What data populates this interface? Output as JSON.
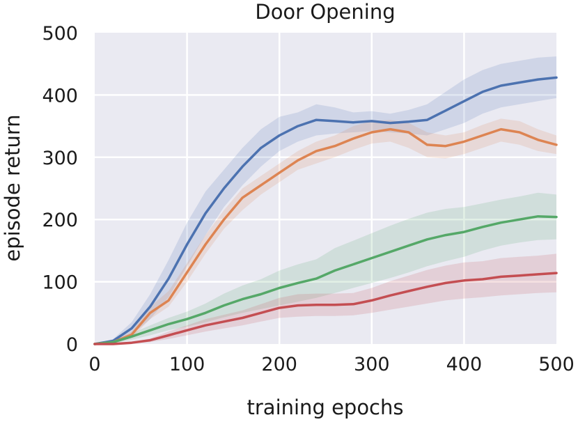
{
  "chart_data": {
    "type": "line",
    "title": "Door Opening",
    "xlabel": "training epochs",
    "ylabel": "episode return",
    "xlim": [
      0,
      500
    ],
    "ylim": [
      0,
      500
    ],
    "xticks": [
      0,
      100,
      200,
      300,
      400,
      500
    ],
    "yticks": [
      0,
      100,
      200,
      300,
      400,
      500
    ],
    "x_tick_labels": [
      "0",
      "100",
      "200",
      "300",
      "400",
      "500"
    ],
    "y_tick_labels": [
      "0",
      "100",
      "200",
      "300",
      "400",
      "500"
    ],
    "grid": true,
    "background": "#eaeaf2",
    "series": [
      {
        "color": "#4c72b0",
        "x": [
          0,
          20,
          40,
          60,
          80,
          100,
          120,
          140,
          160,
          180,
          200,
          220,
          240,
          260,
          280,
          300,
          320,
          340,
          360,
          380,
          400,
          420,
          440,
          460,
          480,
          500
        ],
        "y": [
          0,
          5,
          25,
          60,
          105,
          160,
          210,
          250,
          285,
          315,
          335,
          350,
          360,
          358,
          356,
          358,
          355,
          357,
          360,
          375,
          390,
          405,
          415,
          420,
          425,
          428
        ],
        "lower": [
          0,
          2,
          15,
          40,
          75,
          125,
          175,
          220,
          255,
          285,
          310,
          325,
          335,
          338,
          340,
          342,
          340,
          338,
          335,
          345,
          355,
          370,
          380,
          385,
          390,
          395
        ],
        "upper": [
          0,
          8,
          35,
          80,
          135,
          195,
          245,
          280,
          315,
          345,
          365,
          372,
          385,
          380,
          372,
          374,
          370,
          376,
          385,
          405,
          425,
          440,
          450,
          455,
          460,
          462
        ]
      },
      {
        "color": "#dd8452",
        "x": [
          0,
          20,
          40,
          60,
          80,
          100,
          120,
          140,
          160,
          180,
          200,
          220,
          240,
          260,
          280,
          300,
          320,
          340,
          360,
          380,
          400,
          420,
          440,
          460,
          480,
          500
        ],
        "y": [
          0,
          3,
          15,
          50,
          70,
          115,
          160,
          200,
          235,
          255,
          275,
          295,
          310,
          318,
          330,
          340,
          345,
          340,
          320,
          318,
          325,
          335,
          345,
          340,
          328,
          320
        ],
        "lower": [
          0,
          1,
          10,
          40,
          60,
          100,
          145,
          185,
          215,
          240,
          260,
          280,
          290,
          300,
          312,
          322,
          325,
          315,
          300,
          298,
          305,
          315,
          325,
          320,
          310,
          305
        ],
        "upper": [
          0,
          5,
          20,
          60,
          85,
          130,
          175,
          215,
          250,
          270,
          290,
          310,
          325,
          335,
          350,
          358,
          360,
          355,
          340,
          335,
          340,
          352,
          362,
          358,
          345,
          335
        ]
      },
      {
        "color": "#55a868",
        "x": [
          0,
          20,
          40,
          60,
          80,
          100,
          120,
          140,
          160,
          180,
          200,
          220,
          240,
          260,
          280,
          300,
          320,
          340,
          360,
          380,
          400,
          420,
          440,
          460,
          480,
          500
        ],
        "y": [
          0,
          3,
          12,
          22,
          32,
          40,
          50,
          62,
          72,
          80,
          90,
          98,
          105,
          118,
          128,
          138,
          148,
          158,
          168,
          175,
          180,
          188,
          195,
          200,
          205,
          204
        ],
        "lower": [
          0,
          1,
          7,
          14,
          22,
          28,
          35,
          43,
          50,
          56,
          62,
          68,
          74,
          82,
          90,
          98,
          106,
          115,
          125,
          133,
          140,
          150,
          158,
          163,
          167,
          168
        ],
        "upper": [
          0,
          5,
          17,
          30,
          42,
          52,
          65,
          81,
          94,
          104,
          118,
          128,
          136,
          154,
          166,
          178,
          190,
          201,
          211,
          217,
          220,
          226,
          232,
          237,
          243,
          240
        ]
      },
      {
        "color": "#c44e52",
        "x": [
          0,
          20,
          40,
          60,
          80,
          100,
          120,
          140,
          160,
          180,
          200,
          220,
          240,
          260,
          280,
          300,
          320,
          340,
          360,
          380,
          400,
          420,
          440,
          460,
          480,
          500
        ],
        "y": [
          0,
          0,
          2,
          6,
          14,
          22,
          30,
          36,
          42,
          50,
          58,
          62,
          63,
          63,
          64,
          70,
          78,
          85,
          92,
          98,
          102,
          104,
          108,
          110,
          112,
          114
        ],
        "lower": [
          0,
          0,
          1,
          3,
          8,
          14,
          20,
          25,
          30,
          36,
          42,
          44,
          45,
          45,
          46,
          50,
          55,
          60,
          65,
          70,
          73,
          75,
          78,
          80,
          82,
          83
        ],
        "upper": [
          0,
          0,
          3,
          9,
          20,
          30,
          40,
          47,
          54,
          64,
          74,
          80,
          81,
          81,
          82,
          90,
          101,
          110,
          119,
          126,
          131,
          133,
          138,
          140,
          142,
          145
        ]
      }
    ]
  }
}
